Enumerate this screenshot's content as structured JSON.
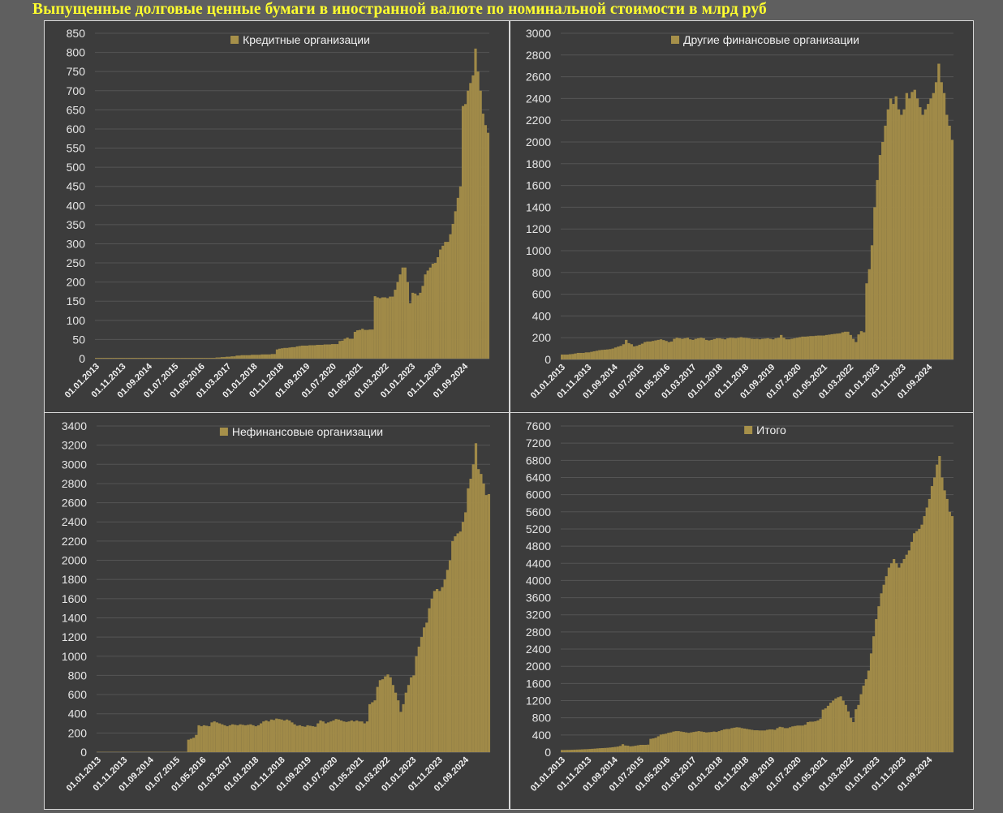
{
  "title": "Выпущенные долговые ценные бумаги в иностранной валюте по номинальной стоимости в млрд руб",
  "colors": {
    "bar": "#a08a48",
    "legend_swatch": "#a6904a",
    "panel_bg": "#3c3c3c",
    "page_bg": "#5f5f5f",
    "title": "#ffff2e"
  },
  "chart_data": [
    {
      "type": "bar",
      "legend": "Кредитные организации",
      "legend_position": "top-center",
      "grid": true,
      "ylim": [
        0,
        850
      ],
      "yticks": [
        "0",
        "50",
        "100",
        "150",
        "200",
        "250",
        "300",
        "350",
        "400",
        "450",
        "500",
        "550",
        "600",
        "650",
        "700",
        "750",
        "800",
        "850"
      ],
      "xticks": [
        "01.01.2013",
        "01.11.2013",
        "01.09.2014",
        "01.07.2015",
        "01.05.2016",
        "01.03.2017",
        "01.01.2018",
        "01.11.2018",
        "01.09.2019",
        "01.07.2020",
        "01.05.2021",
        "01.03.2022",
        "01.01.2023",
        "01.11.2023",
        "01.09.2024"
      ],
      "values": [
        2,
        2,
        2,
        2,
        2,
        2,
        2,
        2,
        2,
        2,
        2,
        2,
        2,
        2,
        2,
        2,
        2,
        2,
        2,
        2,
        2,
        2,
        2,
        2,
        2,
        2,
        2,
        2,
        2,
        2,
        2,
        2,
        2,
        2,
        2,
        2,
        2,
        2,
        2,
        2,
        2,
        2,
        2,
        2,
        2,
        2,
        2,
        2,
        3,
        3,
        4,
        4,
        5,
        5,
        6,
        6,
        8,
        8,
        9,
        9,
        9,
        9,
        10,
        10,
        10,
        10,
        11,
        11,
        11,
        11,
        12,
        12,
        24,
        26,
        27,
        28,
        28,
        29,
        30,
        30,
        32,
        33,
        34,
        34,
        34,
        35,
        35,
        35,
        36,
        36,
        36,
        37,
        37,
        37,
        38,
        38,
        38,
        46,
        47,
        52,
        55,
        52,
        52,
        70,
        74,
        75,
        78,
        75,
        75,
        76,
        76,
        163,
        160,
        158,
        160,
        160,
        158,
        162,
        162,
        180,
        200,
        220,
        238,
        238,
        200,
        145,
        172,
        170,
        165,
        172,
        190,
        220,
        230,
        238,
        248,
        250,
        265,
        285,
        295,
        305,
        305,
        325,
        352,
        385,
        420,
        450,
        660,
        665,
        700,
        720,
        740,
        810,
        750,
        700,
        640,
        610,
        590
      ]
    },
    {
      "type": "bar",
      "legend": "Другие финансовые организации",
      "legend_position": "top-center",
      "grid": true,
      "ylim": [
        0,
        3000
      ],
      "yticks": [
        "0",
        "200",
        "400",
        "600",
        "800",
        "1000",
        "1200",
        "1400",
        "1600",
        "1800",
        "2000",
        "2200",
        "2400",
        "2600",
        "2800",
        "3000"
      ],
      "xticks": [
        "01.01.2013",
        "01.11.2013",
        "01.09.2014",
        "01.07.2015",
        "01.05.2016",
        "01.03.2017",
        "01.01.2018",
        "01.11.2018",
        "01.09.2019",
        "01.07.2020",
        "01.05.2021",
        "01.03.2022",
        "01.01.2023",
        "01.11.2023",
        "01.09.2024"
      ],
      "values": [
        45,
        45,
        45,
        48,
        50,
        55,
        60,
        60,
        60,
        65,
        65,
        70,
        75,
        80,
        85,
        88,
        90,
        92,
        95,
        100,
        110,
        118,
        125,
        140,
        180,
        150,
        140,
        120,
        125,
        135,
        145,
        160,
        165,
        165,
        170,
        175,
        180,
        185,
        178,
        170,
        160,
        165,
        190,
        200,
        195,
        190,
        195,
        200,
        185,
        180,
        190,
        195,
        200,
        195,
        180,
        175,
        180,
        188,
        195,
        195,
        190,
        185,
        195,
        200,
        198,
        195,
        200,
        205,
        200,
        198,
        195,
        190,
        188,
        190,
        185,
        190,
        192,
        195,
        190,
        185,
        195,
        200,
        225,
        200,
        185,
        185,
        190,
        195,
        200,
        205,
        210,
        210,
        212,
        215,
        215,
        218,
        220,
        220,
        220,
        225,
        228,
        232,
        235,
        238,
        240,
        250,
        255,
        255,
        225,
        190,
        160,
        230,
        260,
        250,
        700,
        830,
        1050,
        1400,
        1650,
        1880,
        2000,
        2150,
        2300,
        2400,
        2350,
        2420,
        2300,
        2250,
        2300,
        2450,
        2400,
        2460,
        2480,
        2400,
        2320,
        2250,
        2300,
        2350,
        2400,
        2450,
        2550,
        2720,
        2550,
        2450,
        2250,
        2150,
        2020
      ]
    },
    {
      "type": "bar",
      "legend": "Нефинансовые организации",
      "legend_position": "top-center",
      "grid": true,
      "ylim": [
        0,
        3400
      ],
      "yticks": [
        "0",
        "200",
        "400",
        "600",
        "800",
        "1000",
        "1200",
        "1400",
        "1600",
        "1800",
        "2000",
        "2200",
        "2400",
        "2600",
        "2800",
        "3000",
        "3200",
        "3400"
      ],
      "xticks": [
        "01.01.2013",
        "01.11.2013",
        "01.09.2014",
        "01.07.2015",
        "01.05.2016",
        "01.03.2017",
        "01.01.2018",
        "01.11.2018",
        "01.09.2019",
        "01.07.2020",
        "01.05.2021",
        "01.03.2022",
        "01.01.2023",
        "01.11.2023",
        "01.09.2024"
      ],
      "values": [
        3,
        3,
        3,
        3,
        3,
        3,
        3,
        3,
        3,
        3,
        3,
        3,
        3,
        3,
        3,
        3,
        3,
        3,
        3,
        3,
        3,
        3,
        3,
        3,
        3,
        3,
        3,
        3,
        3,
        3,
        3,
        3,
        3,
        3,
        3,
        130,
        140,
        150,
        180,
        280,
        270,
        280,
        275,
        270,
        310,
        320,
        310,
        300,
        290,
        280,
        270,
        280,
        290,
        285,
        280,
        290,
        285,
        280,
        285,
        290,
        280,
        270,
        280,
        300,
        320,
        330,
        320,
        340,
        335,
        350,
        345,
        340,
        330,
        340,
        330,
        310,
        290,
        275,
        280,
        270,
        265,
        280,
        275,
        270,
        265,
        300,
        330,
        320,
        300,
        310,
        320,
        330,
        345,
        340,
        330,
        320,
        315,
        320,
        330,
        320,
        330,
        320,
        320,
        300,
        320,
        500,
        520,
        540,
        680,
        750,
        760,
        790,
        810,
        780,
        700,
        620,
        540,
        420,
        500,
        620,
        700,
        780,
        800,
        1000,
        1100,
        1200,
        1300,
        1350,
        1500,
        1600,
        1680,
        1700,
        1680,
        1720,
        1800,
        1900,
        2000,
        2200,
        2250,
        2280,
        2300,
        2400,
        2500,
        2750,
        2850,
        3000,
        3220,
        2950,
        2900,
        2800,
        2680,
        2690
      ]
    },
    {
      "type": "bar",
      "legend": "Итого",
      "legend_position": "top-center",
      "grid": true,
      "ylim": [
        0,
        7600
      ],
      "yticks": [
        "0",
        "400",
        "800",
        "1200",
        "1600",
        "2000",
        "2400",
        "2800",
        "3200",
        "3600",
        "4000",
        "4400",
        "4800",
        "5200",
        "5600",
        "6000",
        "6400",
        "6800",
        "7200",
        "7600"
      ],
      "xticks": [
        "01.01.2013",
        "01.11.2013",
        "01.09.2014",
        "01.07.2015",
        "01.05.2016",
        "01.03.2017",
        "01.01.2018",
        "01.11.2018",
        "01.09.2019",
        "01.07.2020",
        "01.05.2021",
        "01.03.2022",
        "01.01.2023",
        "01.11.2023",
        "01.09.2024"
      ],
      "values": [
        50,
        50,
        52,
        52,
        55,
        58,
        60,
        62,
        65,
        68,
        70,
        74,
        78,
        82,
        88,
        92,
        95,
        98,
        102,
        108,
        115,
        122,
        130,
        145,
        185,
        155,
        150,
        135,
        140,
        150,
        160,
        170,
        170,
        170,
        175,
        310,
        320,
        335,
        370,
        410,
        420,
        430,
        450,
        460,
        480,
        490,
        490,
        480,
        470,
        460,
        450,
        460,
        470,
        480,
        490,
        480,
        470,
        460,
        465,
        470,
        480,
        470,
        490,
        510,
        530,
        540,
        540,
        560,
        570,
        580,
        575,
        560,
        550,
        540,
        530,
        520,
        510,
        510,
        505,
        505,
        505,
        520,
        530,
        530,
        520,
        560,
        590,
        580,
        560,
        560,
        580,
        600,
        610,
        620,
        620,
        620,
        640,
        700,
        710,
        710,
        720,
        740,
        780,
        990,
        1020,
        1080,
        1150,
        1200,
        1250,
        1280,
        1300,
        1200,
        1100,
        950,
        800,
        700,
        1000,
        1100,
        1350,
        1550,
        1700,
        1900,
        2300,
        2700,
        3100,
        3400,
        3700,
        3900,
        4100,
        4300,
        4400,
        4500,
        4400,
        4300,
        4400,
        4500,
        4600,
        4700,
        4900,
        5100,
        5150,
        5200,
        5300,
        5500,
        5700,
        5900,
        6200,
        6400,
        6700,
        6900,
        6400,
        6100,
        5900,
        5600,
        5500
      ]
    }
  ]
}
